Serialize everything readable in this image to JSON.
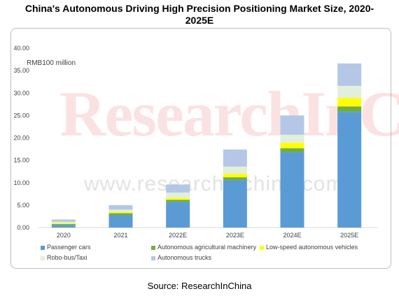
{
  "title_line1": "China's Autonomous Driving High Precision Positioning Market Size, 2020-",
  "title_line2": "2025E",
  "source": "Source: ResearchInChina",
  "watermark": "ResearchInChina",
  "watermark_url": "www.researchinchina.com",
  "chart_data": {
    "type": "bar",
    "stacked": true,
    "ylabel": "RMB100 million",
    "ylim": [
      0,
      40
    ],
    "yticks": [
      "0.00",
      "5.00",
      "10.00",
      "15.00",
      "20.00",
      "25.00",
      "30.00",
      "35.00",
      "40.00"
    ],
    "categories": [
      "2020",
      "2021",
      "2022E",
      "2023E",
      "2024E",
      "2025E"
    ],
    "series": [
      {
        "name": "Passenger cars",
        "color": "#5b9bd5",
        "values": [
          0.6,
          2.8,
          5.7,
          10.6,
          16.8,
          25.8
        ]
      },
      {
        "name": "Autonomous agricultural machinery",
        "color": "#70ad47",
        "values": [
          0.2,
          0.4,
          0.5,
          0.6,
          0.9,
          1.2
        ]
      },
      {
        "name": "Low-speed autonomous vehicles",
        "color": "#ffff00",
        "values": [
          0.2,
          0.3,
          0.4,
          0.8,
          1.2,
          1.9
        ]
      },
      {
        "name": "Robo-bus/Taxi",
        "color": "#e2efda",
        "values": [
          0.3,
          0.5,
          1.2,
          1.6,
          1.8,
          2.7
        ]
      },
      {
        "name": "Autonomous trucks",
        "color": "#b4c7e7",
        "values": [
          0.5,
          1.0,
          1.8,
          3.8,
          4.3,
          5.0
        ]
      }
    ],
    "grid": false,
    "legend_position": "bottom"
  }
}
